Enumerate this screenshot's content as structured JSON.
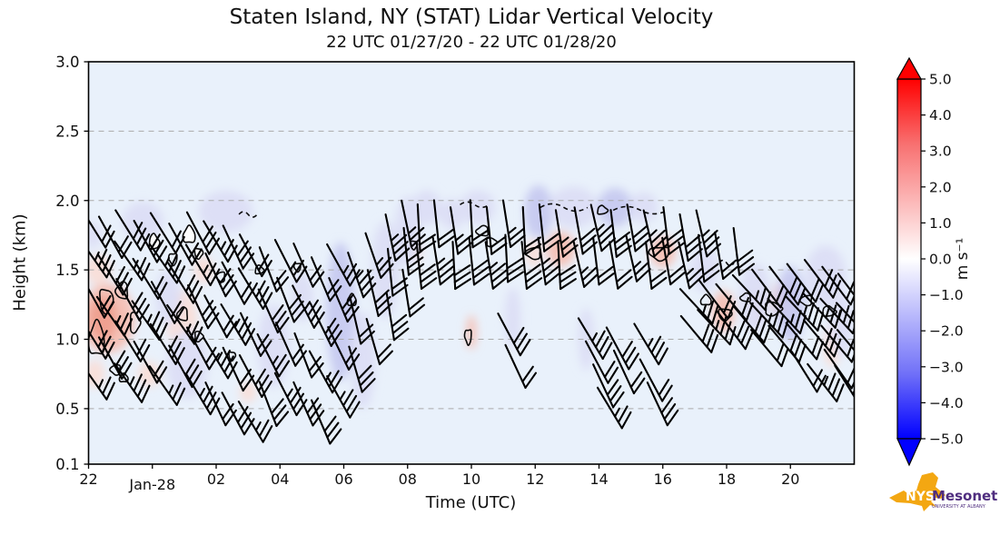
{
  "title": "Staten Island, NY (STAT) Lidar Vertical Velocity",
  "subtitle": "22 UTC 01/27/20 - 22 UTC 01/28/20",
  "axes": {
    "xlabel": "Time (UTC)",
    "ylabel": "Height (km)",
    "x_ticks": [
      {
        "label": "22",
        "t": 0
      },
      {
        "label": "Jan-28",
        "t": 2,
        "date": true
      },
      {
        "label": "02",
        "t": 4
      },
      {
        "label": "04",
        "t": 6
      },
      {
        "label": "06",
        "t": 8
      },
      {
        "label": "08",
        "t": 10
      },
      {
        "label": "10",
        "t": 12
      },
      {
        "label": "12",
        "t": 14
      },
      {
        "label": "14",
        "t": 16
      },
      {
        "label": "16",
        "t": 18
      },
      {
        "label": "18",
        "t": 20
      },
      {
        "label": "20",
        "t": 22
      }
    ],
    "y_ticks": [
      {
        "label": "3.0",
        "z": 3.0
      },
      {
        "label": "2.5",
        "z": 2.5
      },
      {
        "label": "2.0",
        "z": 2.0
      },
      {
        "label": "1.5",
        "z": 1.5
      },
      {
        "label": "1.0",
        "z": 1.0
      },
      {
        "label": "0.5",
        "z": 0.5
      },
      {
        "label": "0.1",
        "z": 0.1
      }
    ],
    "grid_z": [
      0.5,
      1.0,
      1.5,
      2.0,
      2.5
    ]
  },
  "colorbar": {
    "unit": "m s⁻¹",
    "ticks": [
      "5.0",
      "4.0",
      "3.0",
      "2.0",
      "1.0",
      "0.0",
      "−1.0",
      "−2.0",
      "−3.0",
      "−4.0",
      "−5.0"
    ],
    "tick_values": [
      5,
      4,
      3,
      2,
      1,
      0,
      -1,
      -2,
      -3,
      -4,
      -5
    ],
    "top_color": "#ff0000",
    "mid_color": "#ffffff",
    "bottom_color": "#0000ff"
  },
  "logo": {
    "nys": "NYS",
    "mesonet": "Mesonet",
    "sub": "UNIVERSITY AT ALBANY",
    "orange": "#f3a712",
    "purple": "#4f2d7f"
  },
  "colors": {
    "plot_bg": "#e9f1fb",
    "grid": "#aaaaaa",
    "frame": "#000000",
    "barb": "#000000",
    "p1": "#dcdef6",
    "p2": "#c7caf0",
    "r1": "#f9ded8",
    "r2": "#f5c0b4",
    "r3": "#efa08f"
  },
  "chart_data": {
    "type": "heatmap",
    "overlays": [
      "wind-barbs",
      "velocity-contours"
    ],
    "title": "Staten Island, NY (STAT) Lidar Vertical Velocity",
    "subtitle": "22 UTC 01/27/20 - 22 UTC 01/28/20",
    "xlabel": "Time (UTC)",
    "ylabel": "Height (km)",
    "x_range_hours": [
      0,
      24
    ],
    "x_start": "22 UTC 01/27/20",
    "x_end": "22 UTC 01/28/20",
    "ylim_km": [
      0.1,
      3.0
    ],
    "value_unit": "m s⁻¹",
    "value_range": [
      -5.0,
      5.0
    ],
    "grid": true,
    "legend_position": "right-colorbar",
    "barb_groups": [
      {
        "theta": -32,
        "cols": [
          [
            0.1,
            [
              0.72,
              1.02,
              1.32,
              1.6,
              1.82
            ]
          ],
          [
            0.65,
            [
              0.88,
              1.18,
              1.48,
              1.75
            ]
          ],
          [
            1.2,
            [
              0.7,
              1.0,
              1.3,
              1.58,
              1.8
            ]
          ],
          [
            1.75,
            [
              0.85,
              1.15,
              1.45,
              1.72
            ]
          ],
          [
            2.3,
            [
              0.68,
              0.98,
              1.28,
              1.56,
              1.78
            ]
          ],
          [
            2.85,
            [
              0.82,
              1.12,
              1.42,
              1.7
            ]
          ]
        ]
      },
      {
        "theta": -28,
        "cols": [
          [
            3.4,
            [
              0.62,
              0.95,
              1.25,
              1.55,
              1.78
            ]
          ],
          [
            3.95,
            [
              0.55,
              0.88,
              1.18,
              1.48,
              1.72
            ]
          ],
          [
            4.5,
            [
              0.48,
              0.8,
              1.12,
              1.42,
              1.68
            ]
          ],
          [
            5.05,
            [
              0.42,
              0.75,
              1.05,
              1.38,
              1.62
            ]
          ]
        ]
      },
      {
        "theta": -24,
        "cols": [
          [
            5.6,
            [
              0.55,
              0.9,
              1.22,
              1.52
            ]
          ],
          [
            6.15,
            [
              0.62,
              0.98,
              1.3,
              1.58
            ]
          ],
          [
            6.7,
            [
              0.55,
              0.9,
              1.25,
              1.55
            ]
          ]
        ]
      },
      {
        "theta": -26,
        "cols": [
          [
            7.25,
            [
              0.42,
              0.78,
              1.12,
              1.45
            ]
          ],
          [
            7.8,
            [
              0.6,
              0.95,
              1.3,
              1.55
            ]
          ]
        ]
      },
      {
        "theta": -16,
        "cols": [
          [
            8.35,
            [
              0.8,
              1.15,
              1.48
            ]
          ],
          [
            8.9,
            [
              1.0,
              1.35,
              1.62
            ]
          ]
        ]
      },
      {
        "theta": -9,
        "cols": [
          [
            9.45,
            [
              1.18,
              1.5,
              1.75
            ]
          ],
          [
            9.95,
            [
              1.35,
              1.65,
              1.85
            ]
          ]
        ]
      },
      {
        "theta": -6,
        "cols": [
          [
            10.35,
            [
              1.55,
              1.82
            ]
          ],
          [
            10.9,
            [
              1.58,
              1.85
            ]
          ],
          [
            11.45,
            [
              1.55,
              1.8
            ]
          ],
          [
            12.0,
            [
              1.58,
              1.85
            ]
          ],
          [
            12.55,
            [
              1.55,
              1.8
            ]
          ],
          [
            13.1,
            [
              1.6,
              1.85
            ]
          ],
          [
            13.65,
            [
              1.55,
              1.8
            ]
          ],
          [
            14.2,
            [
              1.58,
              1.82
            ]
          ],
          [
            14.75,
            [
              1.55,
              1.78
            ]
          ]
        ]
      },
      {
        "theta": -28,
        "cols": [
          [
            13.15,
            [
              1.05
            ]
          ],
          [
            13.35,
            [
              0.82
            ]
          ],
          [
            15.7,
            [
              1.02
            ]
          ],
          [
            15.9,
            [
              0.85
            ]
          ],
          [
            16.1,
            [
              0.68
            ]
          ],
          [
            16.3,
            [
              0.52
            ]
          ],
          [
            16.55,
            [
              0.95
            ]
          ],
          [
            16.75,
            [
              0.78
            ]
          ],
          [
            17.45,
            [
              0.98
            ]
          ],
          [
            17.6,
            [
              0.72
            ]
          ],
          [
            17.8,
            [
              0.55
            ]
          ]
        ]
      },
      {
        "theta": -10,
        "cols": [
          [
            15.35,
            [
              1.56,
              1.8
            ]
          ],
          [
            15.9,
            [
              1.58,
              1.82
            ]
          ],
          [
            16.45,
            [
              1.55,
              1.78
            ]
          ],
          [
            17.0,
            [
              1.6,
              1.82
            ]
          ],
          [
            17.55,
            [
              1.55,
              1.78
            ]
          ],
          [
            18.1,
            [
              1.58,
              1.8
            ]
          ],
          [
            18.65,
            [
              1.55,
              1.75
            ]
          ],
          [
            19.2,
            [
              1.6,
              1.78
            ]
          ],
          [
            19.75,
            [
              1.62
            ]
          ],
          [
            20.3,
            [
              1.65
            ]
          ]
        ]
      },
      {
        "theta": -40,
        "cols": [
          [
            19.0,
            [
              1.25,
              1.05
            ]
          ],
          [
            19.55,
            [
              1.3,
              1.1
            ]
          ],
          [
            20.1,
            [
              1.28,
              1.08
            ]
          ],
          [
            20.65,
            [
              1.35,
              1.12
            ]
          ],
          [
            21.2,
            [
              1.38,
              1.15,
              0.95
            ]
          ],
          [
            21.75,
            [
              1.4,
              1.18,
              0.98
            ]
          ],
          [
            22.3,
            [
              1.42,
              1.2,
              1.0
            ]
          ],
          [
            22.85,
            [
              1.45,
              1.22,
              1.02
            ]
          ],
          [
            23.4,
            [
              1.4,
              1.18,
              0.98
            ]
          ],
          [
            23.9,
            [
              1.35,
              1.15,
              0.95
            ]
          ]
        ]
      },
      {
        "theta": -35,
        "cols": [
          [
            22.4,
            [
              0.78
            ]
          ],
          [
            22.95,
            [
              0.7
            ]
          ],
          [
            23.45,
            [
              0.8
            ]
          ],
          [
            23.75,
            [
              0.68
            ]
          ]
        ]
      }
    ],
    "shade_patches": [
      [
        0.6,
        1.15,
        1.7,
        0.5,
        "r2"
      ],
      [
        0.45,
        1.15,
        0.9,
        0.32,
        "r3"
      ],
      [
        0.3,
        1.5,
        0.8,
        0.22,
        "r1"
      ],
      [
        0.2,
        0.75,
        0.6,
        0.2,
        "r1"
      ],
      [
        2.9,
        1.15,
        1.0,
        0.4,
        "r1"
      ],
      [
        1.9,
        0.75,
        0.7,
        0.18,
        "r1"
      ],
      [
        3.6,
        1.5,
        0.6,
        0.2,
        "r1"
      ],
      [
        5.0,
        0.62,
        0.5,
        0.15,
        "r1"
      ],
      [
        10.25,
        1.65,
        0.4,
        0.18,
        "r1"
      ],
      [
        12.0,
        1.05,
        0.3,
        0.25,
        "r2"
      ],
      [
        14.8,
        1.65,
        0.9,
        0.25,
        "r2"
      ],
      [
        18.0,
        1.63,
        0.8,
        0.22,
        "r2"
      ],
      [
        19.9,
        1.2,
        0.7,
        0.3,
        "r2"
      ],
      [
        21.0,
        1.22,
        0.6,
        0.28,
        "r2"
      ],
      [
        21.8,
        1.28,
        0.7,
        0.3,
        "r2"
      ],
      [
        23.3,
        0.95,
        0.5,
        0.3,
        "r1"
      ],
      [
        13.95,
        1.62,
        0.5,
        0.2,
        "r1"
      ],
      [
        1.7,
        1.85,
        1.3,
        0.28,
        "p1"
      ],
      [
        4.3,
        1.92,
        1.7,
        0.3,
        "p1"
      ],
      [
        3.1,
        0.82,
        1.3,
        0.5,
        "p1"
      ],
      [
        5.8,
        0.95,
        1.0,
        0.6,
        "p1"
      ],
      [
        7.9,
        1.2,
        0.9,
        1.0,
        "p2"
      ],
      [
        8.6,
        0.85,
        0.8,
        0.7,
        "p1"
      ],
      [
        9.3,
        1.5,
        0.9,
        0.7,
        "p1"
      ],
      [
        10.0,
        1.78,
        0.8,
        0.5,
        "p1"
      ],
      [
        10.6,
        1.95,
        0.9,
        0.25,
        "p1"
      ],
      [
        11.4,
        1.9,
        0.8,
        0.22,
        "p1"
      ],
      [
        12.2,
        1.95,
        1.1,
        0.25,
        "p1"
      ],
      [
        13.3,
        1.15,
        0.5,
        0.45,
        "p1"
      ],
      [
        14.1,
        1.92,
        0.9,
        0.38,
        "p2"
      ],
      [
        15.2,
        1.95,
        1.5,
        0.3,
        "p1"
      ],
      [
        16.5,
        1.95,
        1.1,
        0.28,
        "p2"
      ],
      [
        17.4,
        1.95,
        0.9,
        0.22,
        "p1"
      ],
      [
        15.6,
        1.0,
        0.5,
        0.45,
        "p1"
      ],
      [
        19.3,
        1.5,
        0.9,
        0.32,
        "p1"
      ],
      [
        20.9,
        1.3,
        1.0,
        0.5,
        "p1"
      ],
      [
        22.0,
        1.25,
        0.9,
        0.55,
        "p2"
      ],
      [
        23.1,
        1.45,
        1.3,
        0.45,
        "p1"
      ],
      [
        23.6,
        1.1,
        0.7,
        0.45,
        "p1"
      ],
      [
        6.7,
        1.3,
        0.7,
        0.35,
        "p1"
      ],
      [
        2.5,
        1.3,
        0.8,
        0.4,
        "p1"
      ],
      [
        0.15,
        1.75,
        0.5,
        0.2,
        "p1"
      ]
    ],
    "contours": [
      [
        0.25,
        1.0,
        9,
        20,
        0
      ],
      [
        0.55,
        1.28,
        8,
        14,
        0
      ],
      [
        1.05,
        1.35,
        7,
        10,
        0
      ],
      [
        1.45,
        1.12,
        6,
        12,
        0
      ],
      [
        0.85,
        0.78,
        6,
        6,
        0
      ],
      [
        2.05,
        1.7,
        6,
        9,
        2
      ],
      [
        2.65,
        1.58,
        5,
        7,
        0
      ],
      [
        3.15,
        1.75,
        7,
        10,
        2
      ],
      [
        3.45,
        1.62,
        5,
        6,
        2
      ],
      [
        2.95,
        1.18,
        6,
        8,
        0
      ],
      [
        3.45,
        1.02,
        5,
        6,
        0
      ],
      [
        4.15,
        1.45,
        5,
        6,
        0
      ],
      [
        5.35,
        1.5,
        5,
        5,
        0
      ],
      [
        6.55,
        1.52,
        4,
        5,
        0
      ],
      [
        8.25,
        1.28,
        5,
        7,
        0
      ],
      [
        10.2,
        1.68,
        4,
        5,
        0
      ],
      [
        12.35,
        1.78,
        7,
        6,
        0
      ],
      [
        12.62,
        1.7,
        6,
        5,
        0
      ],
      [
        13.95,
        1.62,
        9,
        7,
        0
      ],
      [
        16.1,
        1.93,
        6,
        5,
        0
      ],
      [
        17.9,
        1.62,
        12,
        8,
        0
      ],
      [
        19.35,
        1.28,
        6,
        6,
        0
      ],
      [
        19.95,
        1.18,
        8,
        7,
        0
      ],
      [
        20.6,
        1.3,
        6,
        5,
        0
      ],
      [
        21.45,
        1.22,
        10,
        8,
        0
      ],
      [
        22.5,
        1.28,
        7,
        6,
        0
      ],
      [
        23.2,
        1.2,
        8,
        6,
        0
      ],
      [
        11.9,
        1.02,
        4,
        9,
        0
      ],
      [
        1.1,
        0.72,
        5,
        5,
        0
      ],
      [
        4.5,
        0.88,
        4,
        5,
        0
      ],
      [
        12.1,
        1.97,
        16,
        3,
        1
      ],
      [
        14.9,
        1.95,
        26,
        4,
        1
      ],
      [
        17.3,
        1.93,
        30,
        4,
        1
      ],
      [
        5.0,
        1.9,
        10,
        3,
        1
      ],
      [
        20.0,
        1.55,
        8,
        3,
        1
      ]
    ]
  }
}
